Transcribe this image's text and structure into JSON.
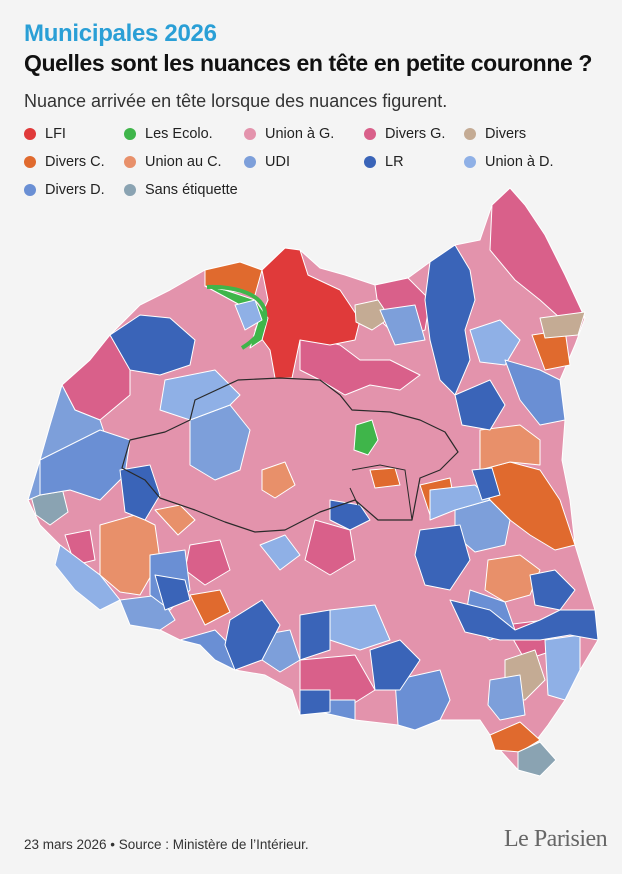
{
  "header": {
    "kicker": "Municipales 2026",
    "title": "Quelles sont les nuances en tête en petite couronne ?",
    "subtitle": "Nuance arrivée en tête lorsque des nuances figurent."
  },
  "legend": [
    {
      "label": "LFI",
      "color": "#e03a3a"
    },
    {
      "label": "Les Ecolo.",
      "color": "#3fb54a"
    },
    {
      "label": "Union à G.",
      "color": "#e393ac"
    },
    {
      "label": "Divers G.",
      "color": "#d9608a"
    },
    {
      "label": "Divers",
      "color": "#c4ab94"
    },
    {
      "label": "Divers C.",
      "color": "#e06a2e"
    },
    {
      "label": "Union au C.",
      "color": "#e8906a"
    },
    {
      "label": "UDI",
      "color": "#7d9fda"
    },
    {
      "label": "LR",
      "color": "#3a64b8"
    },
    {
      "label": "Union à D.",
      "color": "#8fb0e6"
    },
    {
      "label": "Divers D.",
      "color": "#6a8fd4"
    },
    {
      "label": "Sans étiquette",
      "color": "#8aa3b2"
    }
  ],
  "footer": {
    "source": "23 mars 2026 • Source : Ministère de l’Intérieur.",
    "logo": "Le Parisien"
  }
}
